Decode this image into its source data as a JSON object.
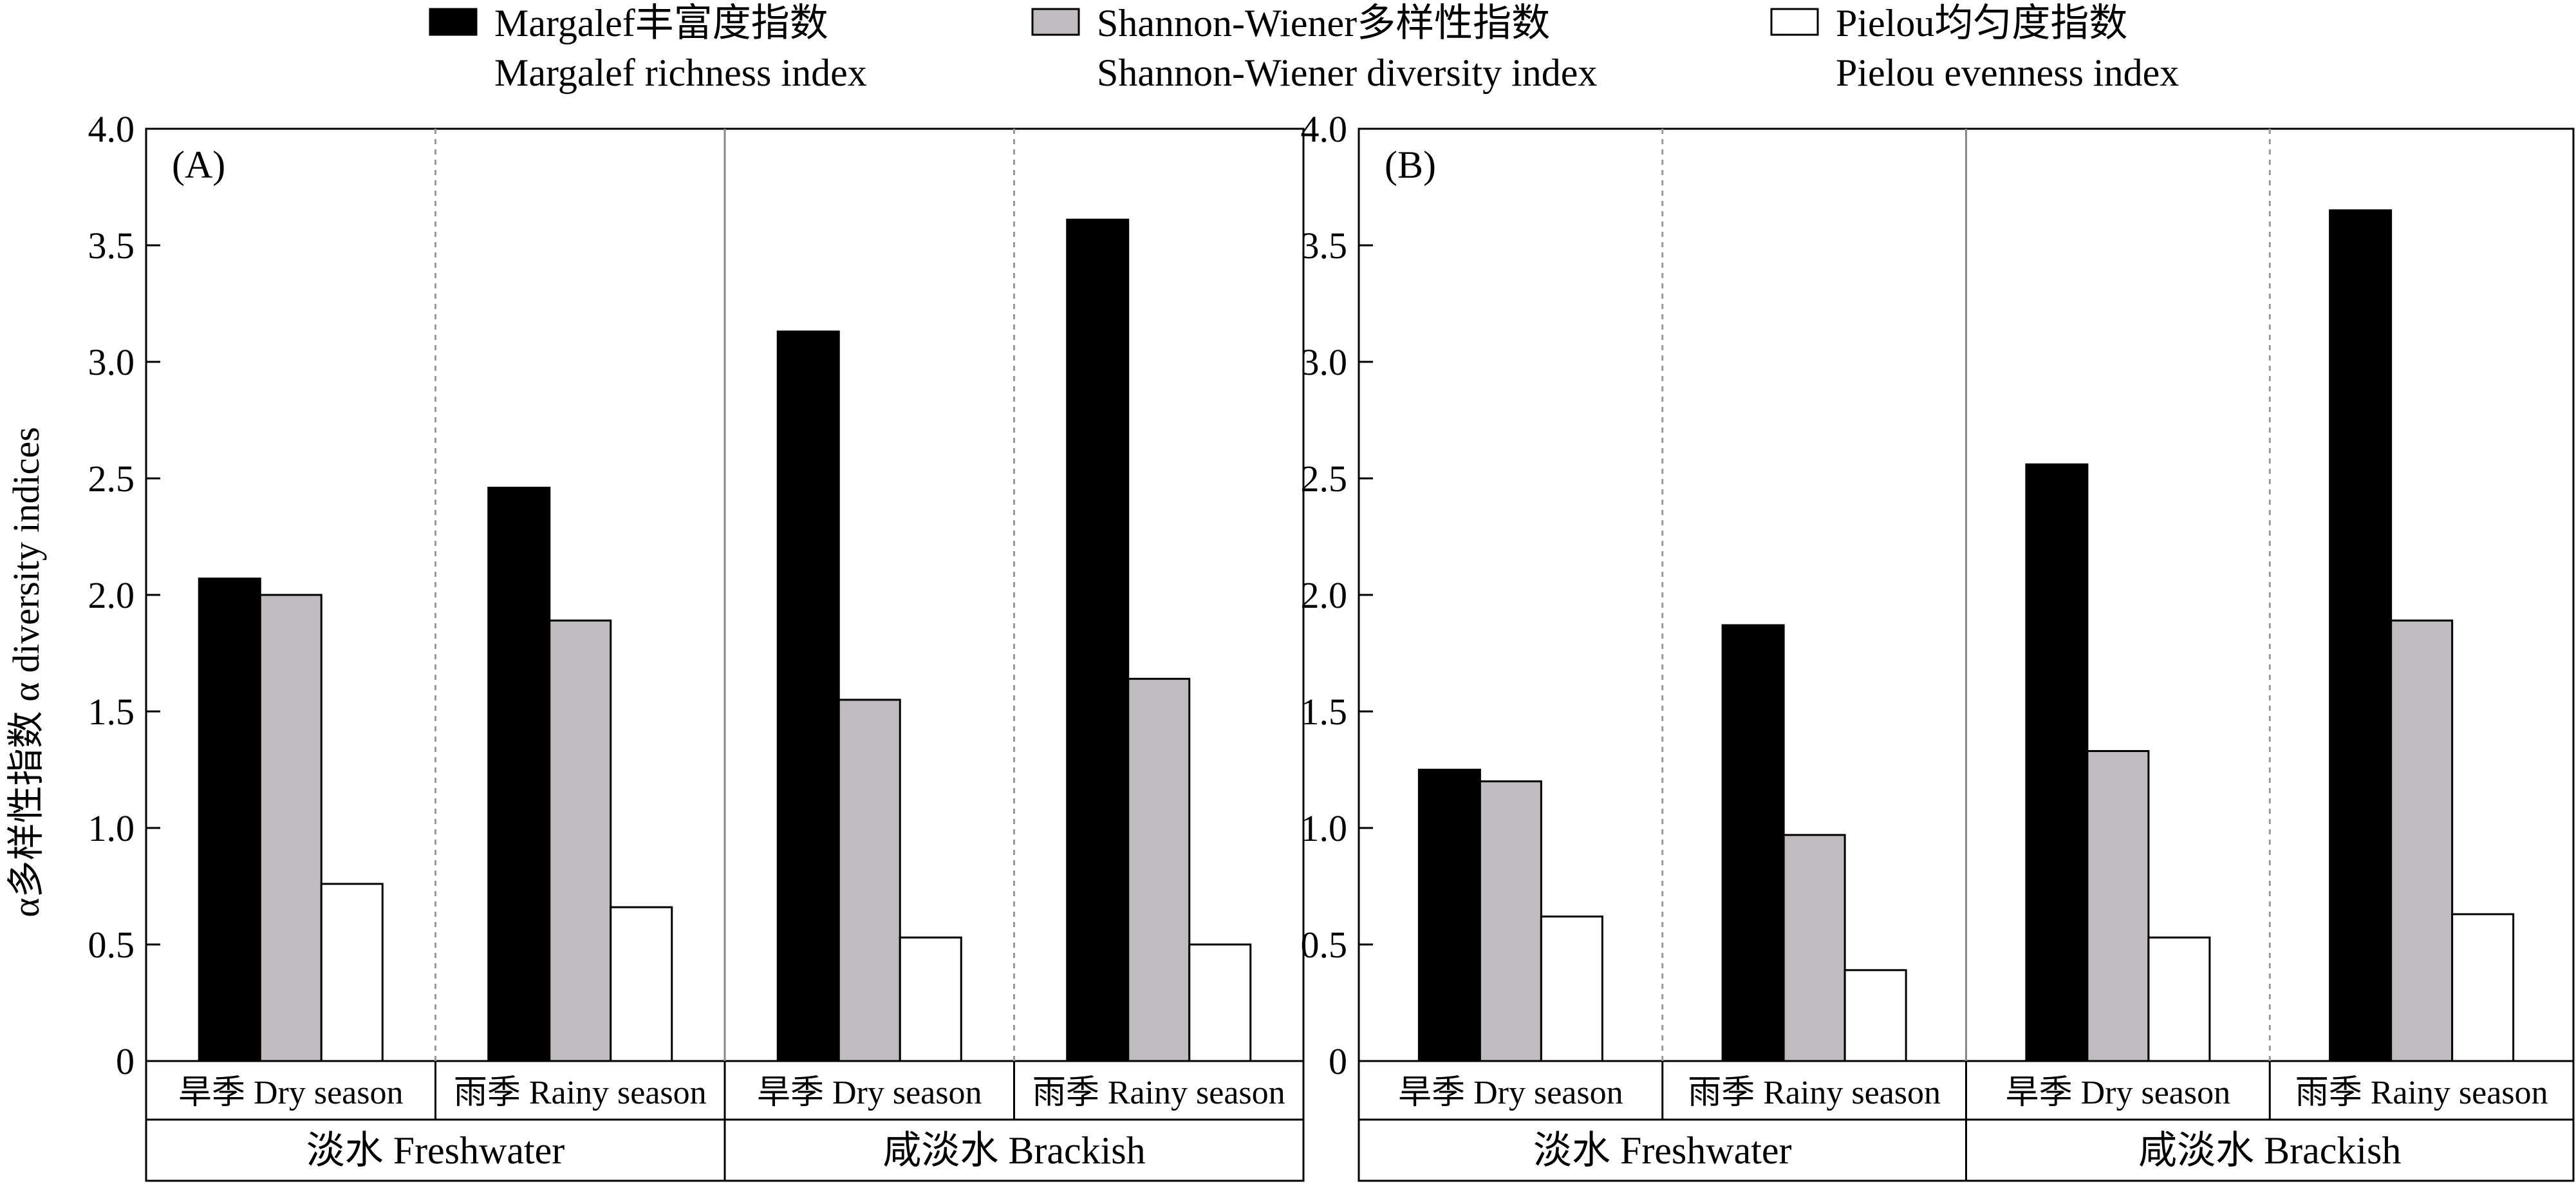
{
  "chart_data": [
    {
      "type": "bar",
      "panel_label": "(A)",
      "ylabel": "α多样性指数 α diversity indices",
      "ylim": [
        0,
        4.0
      ],
      "yticks": [
        "0",
        "0.5",
        "1.0",
        "1.5",
        "2.0",
        "2.5",
        "3.0",
        "3.5",
        "4.0"
      ],
      "categories": [
        "旱季 Dry season",
        "雨季 Rainy season",
        "旱季 Dry season",
        "雨季 Rainy season"
      ],
      "groups": [
        "淡水 Freshwater",
        "咸淡水 Brackish"
      ],
      "series": [
        {
          "name": "Margalef丰富度指数 Margalef richness index",
          "color": "#000000",
          "values": [
            2.07,
            2.46,
            3.13,
            3.61
          ]
        },
        {
          "name": "Shannon-Wiener多样性指数 Shannon-Wiener diversity index",
          "color": "#bfbbbf",
          "values": [
            2.0,
            1.89,
            1.55,
            1.64
          ]
        },
        {
          "name": "Pielou均匀度指数 Pielou evenness index",
          "color": "#ffffff",
          "values": [
            0.76,
            0.66,
            0.53,
            0.5
          ]
        }
      ]
    },
    {
      "type": "bar",
      "panel_label": "(B)",
      "ylim": [
        0,
        4.0
      ],
      "yticks": [
        "0",
        "0.5",
        "1.0",
        "1.5",
        "2.0",
        "2.5",
        "3.0",
        "3.5",
        "4.0"
      ],
      "categories": [
        "旱季 Dry season",
        "雨季 Rainy season",
        "旱季 Dry season",
        "雨季 Rainy season"
      ],
      "groups": [
        "淡水 Freshwater",
        "咸淡水 Brackish"
      ],
      "series": [
        {
          "name": "Margalef丰富度指数 Margalef richness index",
          "color": "#000000",
          "values": [
            1.25,
            1.87,
            2.56,
            3.65
          ]
        },
        {
          "name": "Shannon-Wiener多样性指数 Shannon-Wiener diversity index",
          "color": "#bfbbbf",
          "values": [
            1.2,
            0.97,
            1.33,
            1.89
          ]
        },
        {
          "name": "Pielou均匀度指数 Pielou evenness index",
          "color": "#ffffff",
          "values": [
            0.62,
            0.39,
            0.53,
            0.63
          ]
        }
      ]
    }
  ],
  "legend": {
    "placement": "top",
    "items": [
      {
        "line1": "Margalef丰富度指数",
        "line2": "Margalef richness index",
        "color": "#000000"
      },
      {
        "line1": "Shannon-Wiener多样性指数",
        "line2": "Shannon-Wiener diversity index",
        "color": "#bfbbbf"
      },
      {
        "line1": "Pielou均匀度指数",
        "line2": "Pielou evenness index",
        "color": "#ffffff"
      }
    ]
  }
}
